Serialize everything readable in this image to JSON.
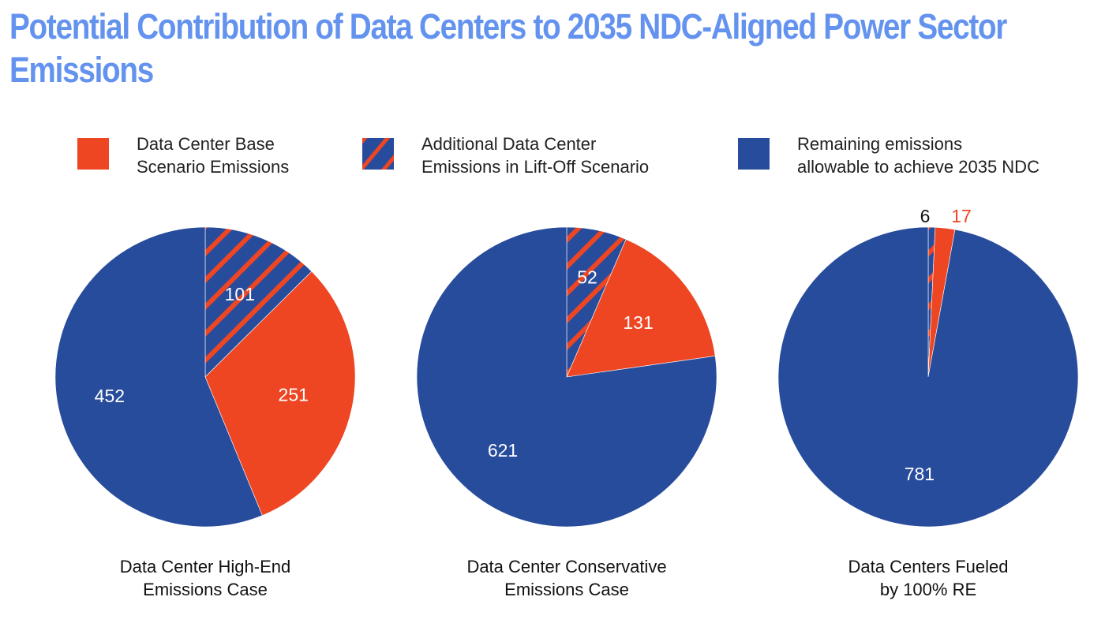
{
  "title_lines": [
    "Potential Contribution of Data Centers to 2035 NDC-Aligned Power Sector",
    "Emissions"
  ],
  "colors": {
    "title": "#6393ee",
    "base": "#ee4522",
    "remaining": "#284c9c",
    "hatch_bg": "#284c9c",
    "hatch_stripe": "#ee4522"
  },
  "legend": [
    {
      "key": "base",
      "lines": [
        "Data Center Base",
        "Scenario Emissions"
      ],
      "swatch": "solid-orange"
    },
    {
      "key": "liftoff",
      "lines": [
        "Additional Data Center",
        "Emissions in Lift-Off Scenario"
      ],
      "swatch": "hatched"
    },
    {
      "key": "remaining",
      "lines": [
        "Remaining emissions",
        "allowable to achieve 2035 NDC"
      ],
      "swatch": "solid-blue"
    }
  ],
  "chart_data": [
    {
      "type": "pie",
      "title": "Data Center High-End Emissions Case",
      "caption_lines": [
        "Data Center High-End",
        "Emissions Case"
      ],
      "slices": [
        {
          "key": "liftoff",
          "label": "Additional Data Center Emissions in Lift-Off Scenario",
          "value": 101,
          "label_text": "101"
        },
        {
          "key": "base",
          "label": "Data Center Base Scenario Emissions",
          "value": 251,
          "label_text": "251"
        },
        {
          "key": "remaining",
          "label": "Remaining emissions allowable to achieve 2035 NDC",
          "value": 452,
          "label_text": "452"
        }
      ]
    },
    {
      "type": "pie",
      "title": "Data Center Conservative Emissions Case",
      "caption_lines": [
        "Data Center Conservative",
        "Emissions Case"
      ],
      "slices": [
        {
          "key": "liftoff",
          "label": "Additional Data Center Emissions in Lift-Off Scenario",
          "value": 52,
          "label_text": "52"
        },
        {
          "key": "base",
          "label": "Data Center Base Scenario Emissions",
          "value": 131,
          "label_text": "131"
        },
        {
          "key": "remaining",
          "label": "Remaining emissions allowable to achieve 2035 NDC",
          "value": 621,
          "label_text": "621"
        }
      ]
    },
    {
      "type": "pie",
      "title": "Data Centers Fueled by 100% RE",
      "caption_lines": [
        "Data Centers Fueled",
        "by 100% RE"
      ],
      "slices": [
        {
          "key": "liftoff",
          "label": "Additional Data Center Emissions in Lift-Off Scenario",
          "value": 6,
          "label_text": "6",
          "label_outside": true
        },
        {
          "key": "base",
          "label": "Data Center Base Scenario Emissions",
          "value": 17,
          "label_text": "17",
          "label_outside": true
        },
        {
          "key": "remaining",
          "label": "Remaining emissions allowable to achieve 2035 NDC",
          "value": 781,
          "label_text": "781"
        }
      ]
    }
  ]
}
